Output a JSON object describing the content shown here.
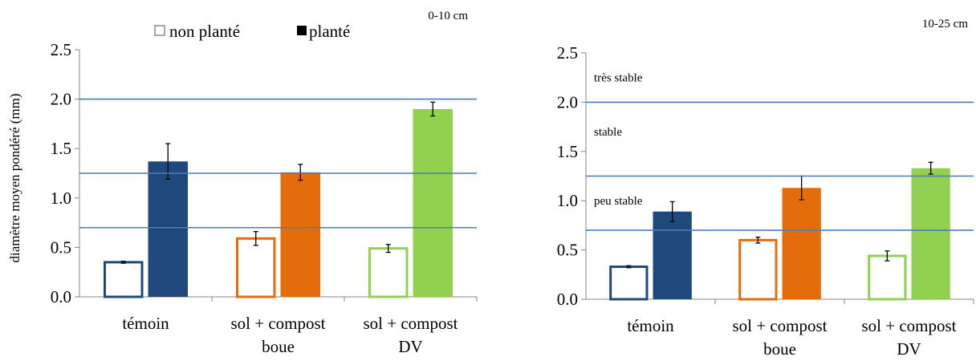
{
  "figure": {
    "legend": {
      "items": [
        {
          "label": "non planté",
          "style": "outline"
        },
        {
          "label": "planté",
          "style": "filled"
        }
      ]
    },
    "stability_labels": [
      "très stable",
      "stable",
      "peu stable"
    ]
  },
  "chart_data": [
    {
      "type": "bar",
      "title": "0-10 cm",
      "ylabel": "diamètre moyen pondéré (mm)",
      "xlabel": "",
      "ylim": [
        0,
        2.5
      ],
      "yticks": [
        "0.0",
        "0.5",
        "1.0",
        "1.5",
        "2.0",
        "2.5"
      ],
      "categories": [
        [
          "témoin"
        ],
        [
          "sol + compost",
          "boue"
        ],
        [
          "sol + compost",
          "DV"
        ]
      ],
      "category_colors": [
        "#1f497d",
        "#e46c0a",
        "#92d050"
      ],
      "series": [
        {
          "name": "non planté",
          "values": [
            0.35,
            0.59,
            0.49
          ],
          "errors": [
            0.01,
            0.07,
            0.04
          ]
        },
        {
          "name": "planté",
          "values": [
            1.37,
            1.26,
            1.9
          ],
          "errors": [
            0.18,
            0.08,
            0.07
          ]
        }
      ],
      "reference_lines": [
        2.0,
        1.25,
        0.7
      ],
      "annotations": []
    },
    {
      "type": "bar",
      "title": "10-25 cm",
      "ylabel": "",
      "xlabel": "",
      "ylim": [
        0,
        2.5
      ],
      "yticks": [
        "0.0",
        "0.5",
        "1.0",
        "1.5",
        "2.0",
        "2.5"
      ],
      "categories": [
        [
          "témoin"
        ],
        [
          "sol + compost",
          "boue"
        ],
        [
          "sol + compost",
          "DV"
        ]
      ],
      "category_colors": [
        "#1f497d",
        "#e46c0a",
        "#92d050"
      ],
      "series": [
        {
          "name": "non planté",
          "values": [
            0.33,
            0.6,
            0.44
          ],
          "errors": [
            0.01,
            0.03,
            0.05
          ]
        },
        {
          "name": "planté",
          "values": [
            0.89,
            1.13,
            1.33
          ],
          "errors": [
            0.1,
            0.12,
            0.06
          ]
        }
      ],
      "reference_lines": [
        2.0,
        1.25,
        0.7
      ],
      "annotations": [
        {
          "text": "très stable",
          "y": 2.25
        },
        {
          "text": "stable",
          "y": 1.7
        },
        {
          "text": "peu stable",
          "y": 1.0
        }
      ]
    }
  ]
}
